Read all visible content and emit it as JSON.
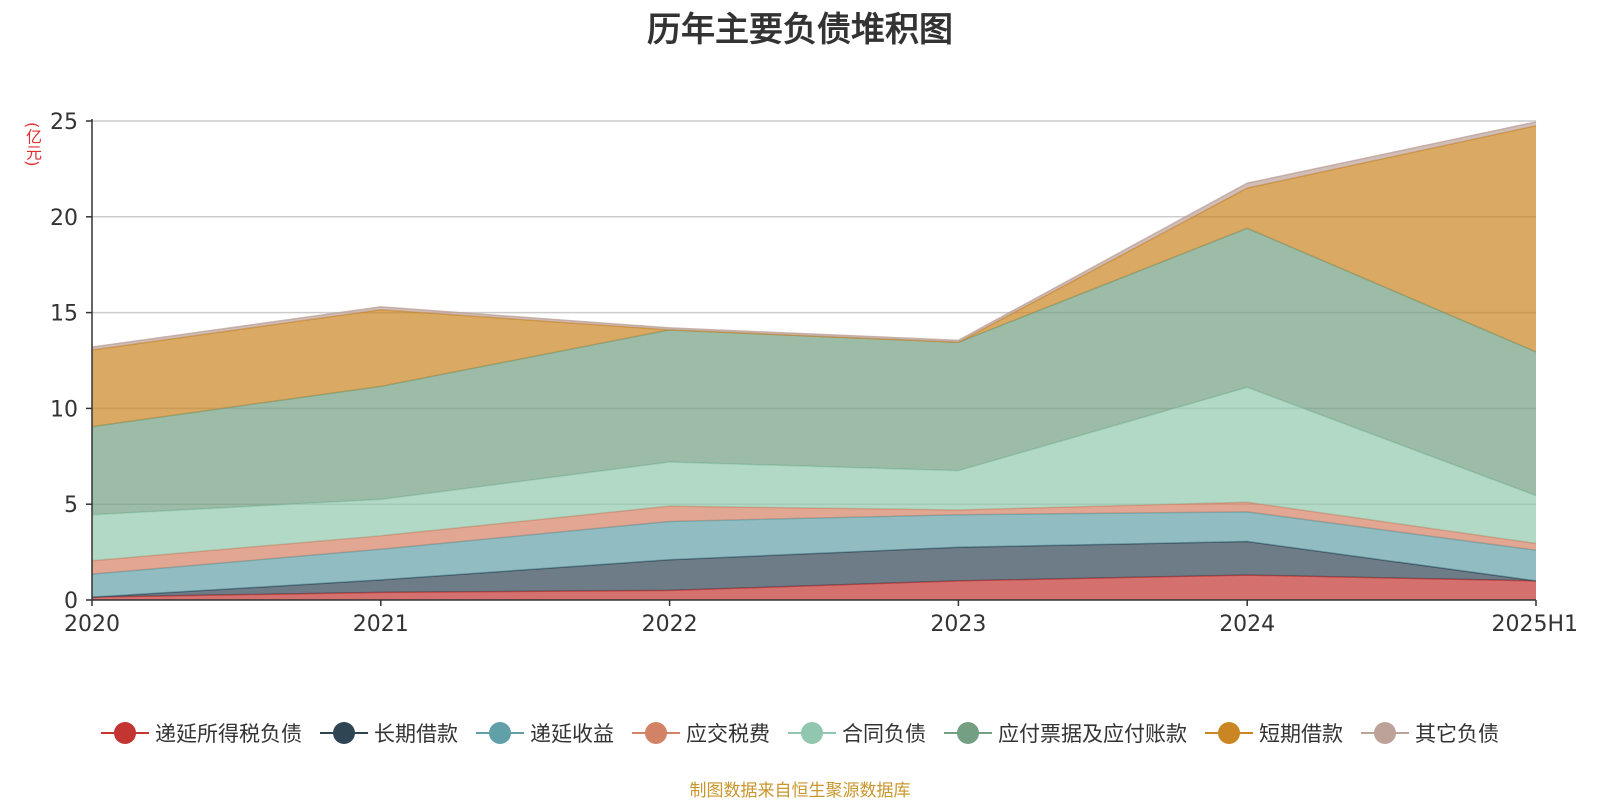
{
  "chart_data": {
    "type": "area",
    "stacked": true,
    "title": "历年主要负债堆积图",
    "ylabel": "(亿元)",
    "source": "制图数据来自恒生聚源数据库",
    "categories": [
      "2020",
      "2021",
      "2022",
      "2023",
      "2024",
      "2025H1"
    ],
    "ylim": [
      0,
      25
    ],
    "yticks": [
      0,
      5,
      10,
      15,
      20,
      25
    ],
    "grid": true,
    "legend_position": "bottom",
    "series": [
      {
        "name": "递延所得税负债",
        "color": "#c23531",
        "values": [
          0.15,
          0.4,
          0.5,
          1.0,
          1.3,
          1.0
        ]
      },
      {
        "name": "长期借款",
        "color": "#2f4554",
        "values": [
          0.0,
          0.65,
          1.6,
          1.75,
          1.75,
          0.0
        ]
      },
      {
        "name": "递延收益",
        "color": "#61a0a8",
        "values": [
          1.2,
          1.6,
          2.0,
          1.7,
          1.55,
          1.6
        ]
      },
      {
        "name": "应交税费",
        "color": "#d48265",
        "values": [
          0.7,
          0.7,
          0.8,
          0.25,
          0.5,
          0.35
        ]
      },
      {
        "name": "合同负债",
        "color": "#91c7ae",
        "values": [
          2.4,
          1.9,
          2.3,
          2.05,
          6.0,
          2.5
        ]
      },
      {
        "name": "应付票据及应付账款",
        "color": "#749f83",
        "values": [
          4.6,
          5.9,
          6.9,
          6.7,
          8.3,
          7.5
        ]
      },
      {
        "name": "短期借款",
        "color": "#ca8622",
        "values": [
          4.0,
          4.0,
          0.0,
          0.0,
          2.1,
          11.8
        ]
      },
      {
        "name": "其它负债",
        "color": "#bda29a",
        "values": [
          0.15,
          0.15,
          0.1,
          0.1,
          0.25,
          0.2
        ]
      }
    ]
  }
}
